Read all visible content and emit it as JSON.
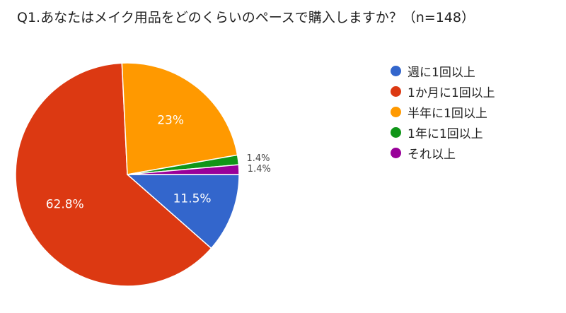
{
  "chart_data": {
    "type": "pie",
    "title": "Q1.あなたはメイク用品をどのくらいのペースで購入しますか？（n=148）",
    "categories": [
      "週に1回以上",
      "1か月に1回以上",
      "半年に1回以上",
      "1年に1回以上",
      "それ以上"
    ],
    "values": [
      11.5,
      62.8,
      23,
      1.4,
      1.4
    ],
    "labels": [
      "11.5%",
      "62.8%",
      "23%",
      "1.4%",
      "1.4%"
    ],
    "colors": [
      "#3366cc",
      "#dc3912",
      "#ff9900",
      "#109618",
      "#990099"
    ],
    "legend": "right"
  }
}
